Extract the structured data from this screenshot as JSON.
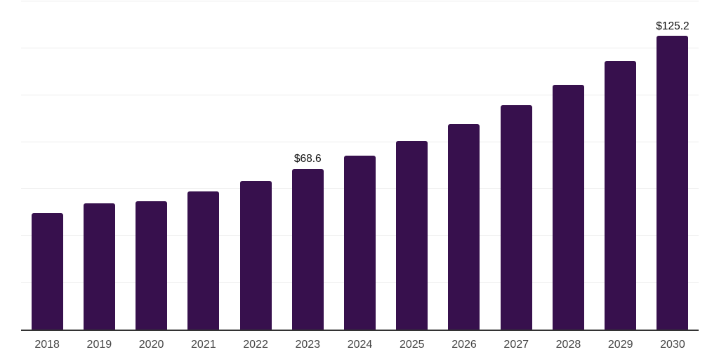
{
  "chart_data": {
    "type": "bar",
    "title": "",
    "xlabel": "",
    "ylabel": "",
    "categories": [
      "2018",
      "2019",
      "2020",
      "2021",
      "2022",
      "2023",
      "2024",
      "2025",
      "2026",
      "2027",
      "2028",
      "2029",
      "2030"
    ],
    "values": [
      49.7,
      53.9,
      54.8,
      58.9,
      63.5,
      68.6,
      74.2,
      80.5,
      87.6,
      95.7,
      104.4,
      114.5,
      125.2
    ],
    "data_labels": {
      "2023": "$68.6",
      "2030": "$125.2"
    },
    "ylim": [
      0,
      140
    ],
    "grid_step": 20,
    "gridlines": "horizontal",
    "legend": "none",
    "colors": {
      "bar": "#37104D",
      "gridline": "#ececec",
      "axis": "#333333",
      "tick_label": "#454545",
      "value_label": "#111111",
      "background": "#ffffff"
    }
  }
}
